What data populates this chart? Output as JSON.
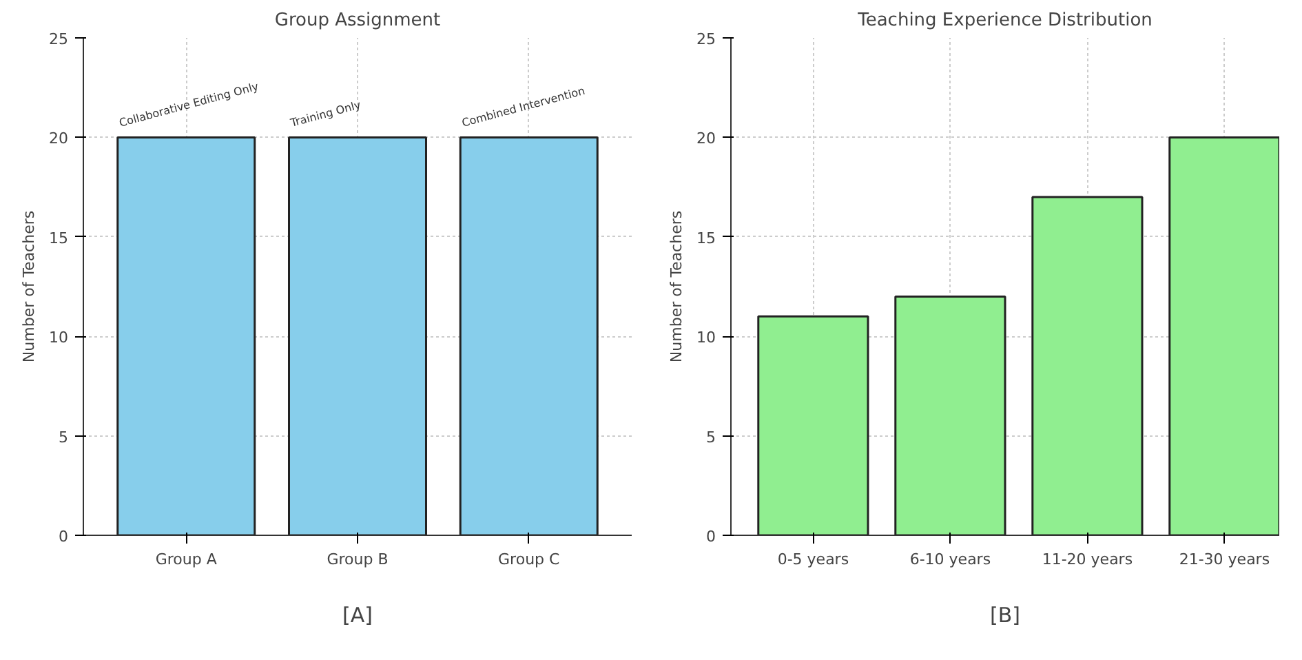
{
  "chart_data": [
    {
      "type": "bar",
      "title": "Group Assignment",
      "ylabel": "Number of Teachers",
      "categories": [
        "Group A",
        "Group B",
        "Group C"
      ],
      "values": [
        20,
        20,
        20
      ],
      "color": "#87ceeb",
      "ylim": [
        0,
        25
      ],
      "yticks": [
        0,
        5,
        10,
        15,
        20,
        25
      ],
      "grid": true,
      "annotations": [
        {
          "text": "Collaborative Editing Only",
          "x": "Group A",
          "y": 20
        },
        {
          "text": "Training Only",
          "x": "Group B",
          "y": 20
        },
        {
          "text": "Combined Intervention",
          "x": "Group C",
          "y": 20
        },
        "[A]"
      ]
    },
    {
      "type": "bar",
      "title": "Teaching Experience Distribution",
      "ylabel": "Number of Teachers",
      "categories": [
        "0-5 years",
        "6-10 years",
        "11-20 years",
        "21-30 years"
      ],
      "values": [
        11,
        12,
        17,
        20
      ],
      "color": "#90ee90",
      "ylim": [
        0,
        25
      ],
      "yticks": [
        0,
        5,
        10,
        15,
        20,
        25
      ],
      "grid": true,
      "annotations": [
        "[B]"
      ]
    }
  ]
}
